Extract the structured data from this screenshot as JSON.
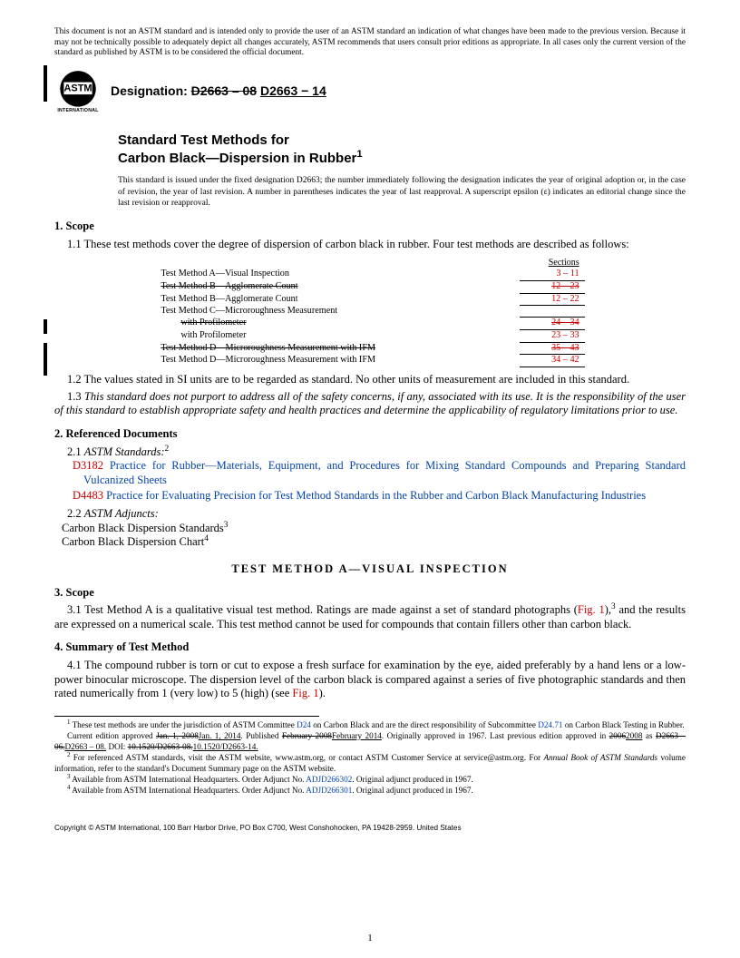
{
  "disclaimer": "This document is not an ASTM standard and is intended only to provide the user of an ASTM standard an indication of what changes have been made to the previous version. Because it may not be technically possible to adequately depict all changes accurately, ASTM recommends that users consult prior editions as appropriate. In all cases only the current version of the standard as published by ASTM is to be considered the official document.",
  "designation_label": "Designation:",
  "designation_old": "D2663 – 08",
  "designation_new": "D2663 − 14",
  "title_line1": "Standard Test Methods for",
  "title_line2": "Carbon Black—Dispersion in Rubber",
  "title_sup": "1",
  "issuance": "This standard is issued under the fixed designation D2663; the number immediately following the designation indicates the year of original adoption or, in the case of revision, the year of last revision. A number in parentheses indicates the year of last reapproval. A superscript epsilon (ε) indicates an editorial change since the last revision or reapproval.",
  "sec1_heading": "1.  Scope",
  "sec1_1": "1.1  These test methods cover the degree of dispersion of carbon black in rubber. Four test methods are described as follows:",
  "table_header": "Sections",
  "rows": [
    {
      "m": "Test Method A—Visual Inspection",
      "s": "3 – 11",
      "strike": false
    },
    {
      "m": "Test Method B—Agglomerate Count",
      "s": "12 – 23",
      "strike": true
    },
    {
      "m": "Test Method B—Agglomerate Count",
      "s": "12 – 22",
      "strike": false
    },
    {
      "m": "Test Method C—Microroughness Measurement",
      "s": "",
      "strike": false
    },
    {
      "m": "with Profilometer",
      "s": "24 – 34",
      "strike": true,
      "indent": true
    },
    {
      "m": "with Profilometer",
      "s": "23 – 33",
      "strike": false,
      "indent": true
    },
    {
      "m": "Test Method D—Microroughness Measurement with IFM",
      "s": "35 – 43",
      "strike": true
    },
    {
      "m": "Test Method D—Microroughness Measurement with IFM",
      "s": "34 – 42",
      "strike": false
    }
  ],
  "sec1_2": "1.2  The values stated in SI units are to be regarded as standard. No other units of measurement are included in this standard.",
  "sec1_3": "1.3  This standard does not purport to address all of the safety concerns, if any, associated with its use. It is the responsibility of the user of this standard to establish appropriate safety and health practices and determine the applicability of regulatory limitations prior to use.",
  "sec2_heading": "2.  Referenced Documents",
  "sec2_1_label": "2.1 ",
  "sec2_1_title": "ASTM Standards:",
  "sec2_1_sup": "2",
  "ref1_code": "D3182",
  "ref1_text": " Practice for Rubber—Materials, Equipment, and Procedures for Mixing Standard Compounds and Preparing Standard Vulcanized Sheets",
  "ref2_code": "D4483",
  "ref2_text": " Practice for Evaluating Precision for Test Method Standards in the Rubber and Carbon Black Manufacturing Industries",
  "sec2_2_label": "2.2 ",
  "sec2_2_title": "ASTM Adjuncts:",
  "adj1": "Carbon Black Dispersion Standards",
  "adj1_sup": "3",
  "adj2": "Carbon Black Dispersion Chart",
  "adj2_sup": "4",
  "method_title": "TEST METHOD A—VISUAL INSPECTION",
  "sec3_heading": "3.  Scope",
  "sec3_1a": "3.1  Test Method A is a qualitative visual test method. Ratings are made against a set of standard photographs (",
  "fig1": "Fig. 1",
  "sec3_1b": "),",
  "sec3_1_sup": "3",
  "sec3_1c": " and the results are expressed on a numerical scale. This test method cannot be used for compounds that contain fillers other than carbon black.",
  "sec4_heading": "4.  Summary of Test Method",
  "sec4_1a": "4.1  The compound rubber is torn or cut to expose a fresh surface for examination by the eye, aided preferably by a hand lens or a low-power binocular microscope. The dispersion level of the carbon black is compared against a series of five photographic standards and then rated numerically from 1 (very low) to 5 (high) (see ",
  "sec4_1b": ").",
  "fn1a": " These test methods are under the jurisdiction of ASTM Committee ",
  "fn1_link1": "D24",
  "fn1b": " on Carbon Black and are the direct responsibility of Subcommittee ",
  "fn1_link2": "D24.71",
  "fn1c": " on Carbon Black Testing in Rubber.",
  "fn1d_a": "Current edition approved ",
  "fn1d_old1": "Jan. 1, 2008",
  "fn1d_new1": "Jan. 1, 2014",
  "fn1d_b": ". Published ",
  "fn1d_old2": "February 2008",
  "fn1d_new2": "February 2014",
  "fn1d_c": ". Originally approved in 1967. Last previous edition approved in ",
  "fn1d_old3": "2006",
  "fn1d_new3": "2008",
  "fn1d_d": " as ",
  "fn1d_old4": "D2663 – 06.",
  "fn1d_new4": "D2663 – 08.",
  "fn1d_e": " DOI: ",
  "fn1d_old5": "10.1520/D2663-08.",
  "fn1d_new5": "10.1520/D2663-14.",
  "fn2": " For referenced ASTM standards, visit the ASTM website, www.astm.org, or contact ASTM Customer Service at service@astm.org. For ",
  "fn2_ital": "Annual Book of ASTM Standards",
  "fn2b": " volume information, refer to the standard's Document Summary page on the ASTM website.",
  "fn3a": " Available from ASTM International Headquarters. Order Adjunct No. ",
  "fn3_link": "ADJD266302",
  "fn3b": ". Original adjunct produced in 1967.",
  "fn4a": " Available from ASTM International Headquarters. Order Adjunct No. ",
  "fn4_link": "ADJD266301",
  "fn4b": ". Original adjunct produced in 1967.",
  "copyright": "Copyright © ASTM International, 100 Barr Harbor Drive, PO Box C700, West Conshohocken, PA 19428-2959. United States",
  "pagenum": "1"
}
